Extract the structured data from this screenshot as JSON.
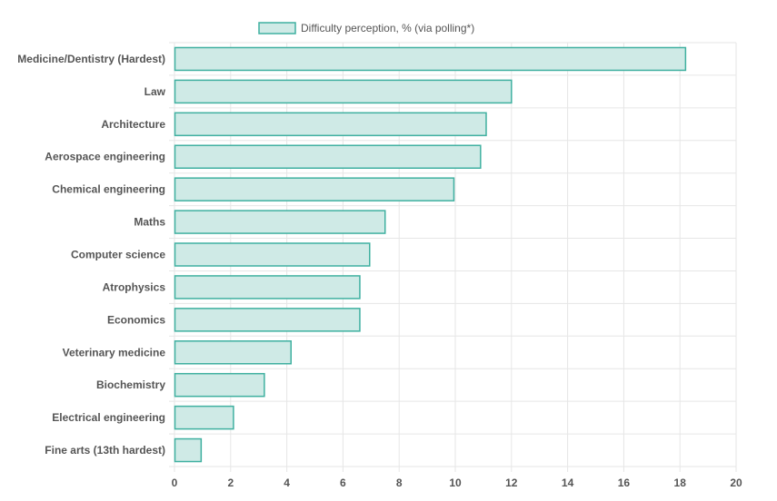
{
  "chart_data": {
    "type": "bar",
    "orientation": "horizontal",
    "categories": [
      "Medicine/Dentistry (Hardest)",
      "Law",
      "Architecture",
      "Aerospace engineering",
      "Chemical engineering",
      "Maths",
      "Computer science",
      "Atrophysics",
      "Economics",
      "Veterinary medicine",
      "Biochemistry",
      "Electrical engineering",
      "Fine arts (13th hardest)"
    ],
    "series": [
      {
        "name": "Difficulty perception, % (via polling*)",
        "values": [
          18.2,
          12.0,
          11.1,
          10.9,
          9.95,
          7.5,
          6.95,
          6.6,
          6.6,
          4.15,
          3.2,
          2.1,
          0.95
        ]
      }
    ],
    "xlim": [
      0,
      20
    ],
    "x_ticks": [
      "0",
      "2",
      "4",
      "6",
      "8",
      "10",
      "12",
      "14",
      "16",
      "18",
      "20"
    ],
    "grid": true,
    "legend_position": "top",
    "colors": {
      "bar_fill": "#cfeae6",
      "bar_stroke": "#3fb0a0",
      "grid": "#e6e6e6",
      "text": "#555555"
    }
  }
}
